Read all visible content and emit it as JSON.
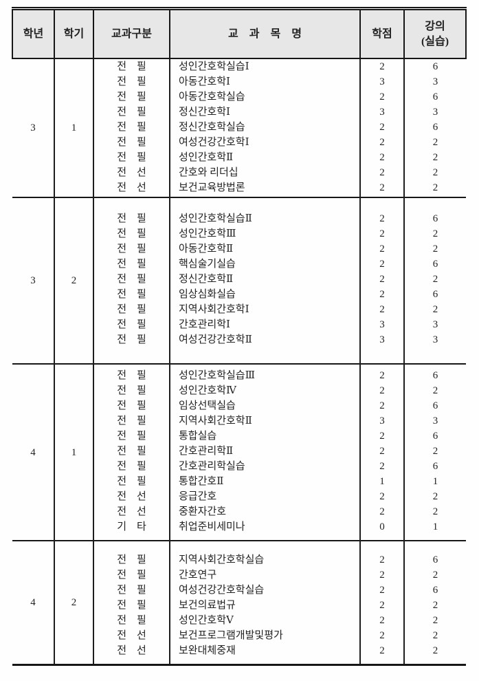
{
  "colors": {
    "header_bg": "#e7e7e7",
    "border": "#161616",
    "text": "#222222"
  },
  "table": {
    "headers": {
      "year": "학년",
      "semester": "학기",
      "category": "교과구분",
      "course_name": "교　과　목　명",
      "credits": "학점",
      "lecture_top": "강의",
      "lecture_bottom": "(실습)"
    },
    "blocks": [
      {
        "year": "3",
        "semester": "1",
        "rows": [
          {
            "category": "전　필",
            "name": "성인간호학실습Ⅰ",
            "credits": "2",
            "hours": "6"
          },
          {
            "category": "전　필",
            "name": "아동간호학Ⅰ",
            "credits": "3",
            "hours": "3"
          },
          {
            "category": "전　필",
            "name": "아동간호학실습",
            "credits": "2",
            "hours": "6"
          },
          {
            "category": "전　필",
            "name": "정신간호학Ⅰ",
            "credits": "3",
            "hours": "3"
          },
          {
            "category": "전　필",
            "name": "정신간호학실습",
            "credits": "2",
            "hours": "6"
          },
          {
            "category": "전　필",
            "name": "여성건강간호학Ⅰ",
            "credits": "2",
            "hours": "2"
          },
          {
            "category": "전　필",
            "name": "성인간호학Ⅱ",
            "credits": "2",
            "hours": "2"
          },
          {
            "category": "전　선",
            "name": "간호와 리더십",
            "credits": "2",
            "hours": "2"
          },
          {
            "category": "전　선",
            "name": "보건교육방법론",
            "credits": "2",
            "hours": "2"
          }
        ]
      },
      {
        "year": "3",
        "semester": "2",
        "rows": [
          {
            "category": "전　필",
            "name": "성인간호학실습Ⅱ",
            "credits": "2",
            "hours": "6"
          },
          {
            "category": "전　필",
            "name": "성인간호학Ⅲ",
            "credits": "2",
            "hours": "2"
          },
          {
            "category": "전　필",
            "name": "아동간호학Ⅱ",
            "credits": "2",
            "hours": "2"
          },
          {
            "category": "전　필",
            "name": "핵심술기실습",
            "credits": "2",
            "hours": "6"
          },
          {
            "category": "전　필",
            "name": "정신간호학Ⅱ",
            "credits": "2",
            "hours": "2"
          },
          {
            "category": "전　필",
            "name": "임상심화실습",
            "credits": "2",
            "hours": "6"
          },
          {
            "category": "전　필",
            "name": "지역사회간호학Ⅰ",
            "credits": "2",
            "hours": "2"
          },
          {
            "category": "전　필",
            "name": "간호관리학Ⅰ",
            "credits": "3",
            "hours": "3"
          },
          {
            "category": "전　필",
            "name": "여성건강간호학Ⅱ",
            "credits": "3",
            "hours": "3"
          }
        ]
      },
      {
        "year": "4",
        "semester": "1",
        "rows": [
          {
            "category": "전　필",
            "name": "성인간호학실습Ⅲ",
            "credits": "2",
            "hours": "6"
          },
          {
            "category": "전　필",
            "name": "성인간호학Ⅳ",
            "credits": "2",
            "hours": "2"
          },
          {
            "category": "전　필",
            "name": "임상선택실습",
            "credits": "2",
            "hours": "6"
          },
          {
            "category": "전　필",
            "name": "지역사회간호학Ⅱ",
            "credits": "3",
            "hours": "3"
          },
          {
            "category": "전　필",
            "name": "통합실습",
            "credits": "2",
            "hours": "6"
          },
          {
            "category": "전　필",
            "name": "간호관리학Ⅱ",
            "credits": "2",
            "hours": "2"
          },
          {
            "category": "전　필",
            "name": "간호관리학실습",
            "credits": "2",
            "hours": "6"
          },
          {
            "category": "전　필",
            "name": "통합간호Ⅱ",
            "credits": "1",
            "hours": "1"
          },
          {
            "category": "전　선",
            "name": "응급간호",
            "credits": "2",
            "hours": "2"
          },
          {
            "category": "전　선",
            "name": "중환자간호",
            "credits": "2",
            "hours": "2"
          },
          {
            "category": "기　타",
            "name": "취업준비세미나",
            "credits": "0",
            "hours": "1"
          }
        ]
      },
      {
        "year": "4",
        "semester": "2",
        "rows": [
          {
            "category": "전　필",
            "name": "지역사회간호학실습",
            "credits": "2",
            "hours": "6"
          },
          {
            "category": "전　필",
            "name": "간호연구",
            "credits": "2",
            "hours": "2"
          },
          {
            "category": "전　필",
            "name": "여성건강간호학실습",
            "credits": "2",
            "hours": "6"
          },
          {
            "category": "전　필",
            "name": "보건의료법규",
            "credits": "2",
            "hours": "2"
          },
          {
            "category": "전　필",
            "name": "성인간호학Ⅴ",
            "credits": "2",
            "hours": "2"
          },
          {
            "category": "전　선",
            "name": "보건프로그램개발및평가",
            "credits": "2",
            "hours": "2"
          },
          {
            "category": "전　선",
            "name": "보완대체중재",
            "credits": "2",
            "hours": "2"
          }
        ]
      }
    ]
  }
}
